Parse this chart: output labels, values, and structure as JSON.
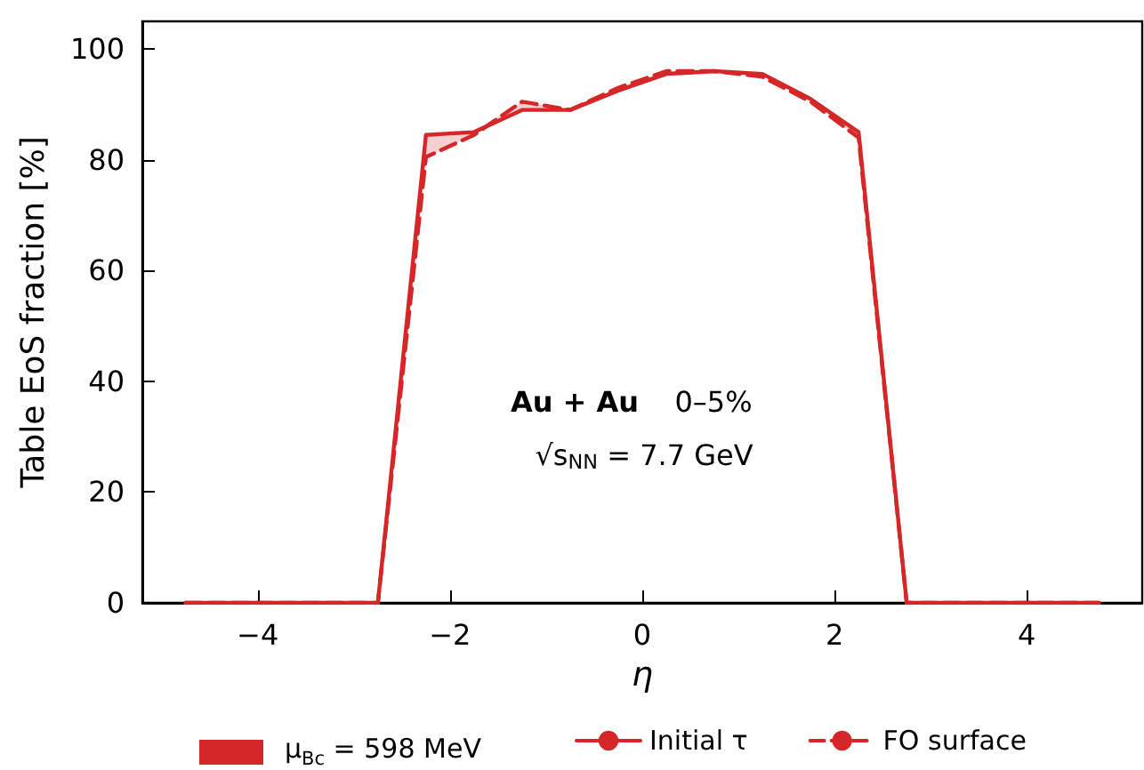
{
  "chart_data": {
    "type": "line",
    "xlabel": "η",
    "ylabel": "Table EoS fraction [%]",
    "legend_title": "μ$_{Bc}$ = 598 MeV",
    "x": [
      -4.75,
      -4.25,
      -3.75,
      -3.25,
      -2.75,
      -2.25,
      -1.75,
      -1.25,
      -0.75,
      -0.25,
      0.25,
      0.75,
      1.25,
      1.75,
      2.25,
      2.75,
      3.25,
      3.75,
      4.25,
      4.75
    ],
    "series": [
      {
        "name": "Initial τ",
        "color": "#d62728",
        "line_style": "solid",
        "values": [
          0,
          0,
          0,
          0,
          0,
          84.5,
          85,
          89,
          89,
          92.5,
          95.5,
          96,
          95.5,
          91,
          85,
          0,
          0,
          0,
          0,
          0
        ],
        "lower": [
          0,
          0,
          0,
          0,
          0,
          80.5,
          84.5,
          89,
          89,
          92.5,
          95.5,
          96,
          95,
          90.5,
          84,
          0,
          0,
          0,
          0,
          0
        ],
        "upper": [
          0,
          0,
          0,
          0,
          0,
          84.5,
          85,
          90.5,
          89,
          93,
          96,
          96,
          95.5,
          91,
          85,
          0,
          0,
          0,
          0,
          0
        ]
      },
      {
        "name": "FO surface",
        "color": "#d62728",
        "line_style": "dashed",
        "values": [
          0,
          0,
          0,
          0,
          0,
          80.5,
          84.5,
          90.5,
          89,
          93,
          96,
          96,
          95,
          90.5,
          84,
          0,
          0,
          0,
          0,
          0
        ]
      }
    ],
    "xlim": [
      -5.2,
      5.2
    ],
    "xticks": [
      -4,
      -2,
      0,
      2,
      4
    ],
    "ylim": [
      0,
      105
    ],
    "yticks": [
      0,
      20,
      40,
      60,
      80,
      100
    ],
    "legend": "bottom",
    "grid": false,
    "marker": "none",
    "annotations": [
      "Au + Au",
      "0–5%",
      "√s$_{NN}$ = 7.7 GeV"
    ]
  }
}
